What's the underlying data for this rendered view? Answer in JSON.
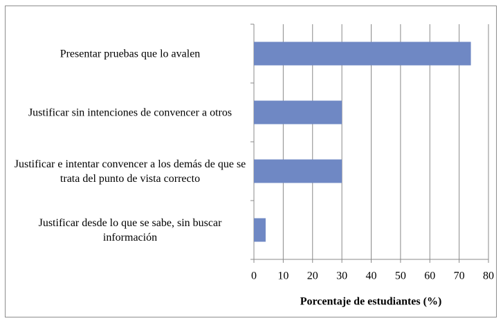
{
  "chart_data": {
    "type": "bar",
    "orientation": "horizontal",
    "categories": [
      "Presentar pruebas que lo avalen",
      "Justificar sin intenciones de convencer a otros",
      "Justificar e intentar convencer a los demás de que se trata del punto de vista correcto",
      "Justificar desde lo que se sabe, sin buscar información"
    ],
    "values": [
      74,
      30,
      30,
      4
    ],
    "color": "#6f88c4",
    "xlabel": "Porcentaje de estudiantes (%)",
    "xlim": [
      0,
      80
    ],
    "xticks": [
      0,
      10,
      20,
      30,
      40,
      50,
      60,
      70,
      80
    ],
    "grid": true
  }
}
